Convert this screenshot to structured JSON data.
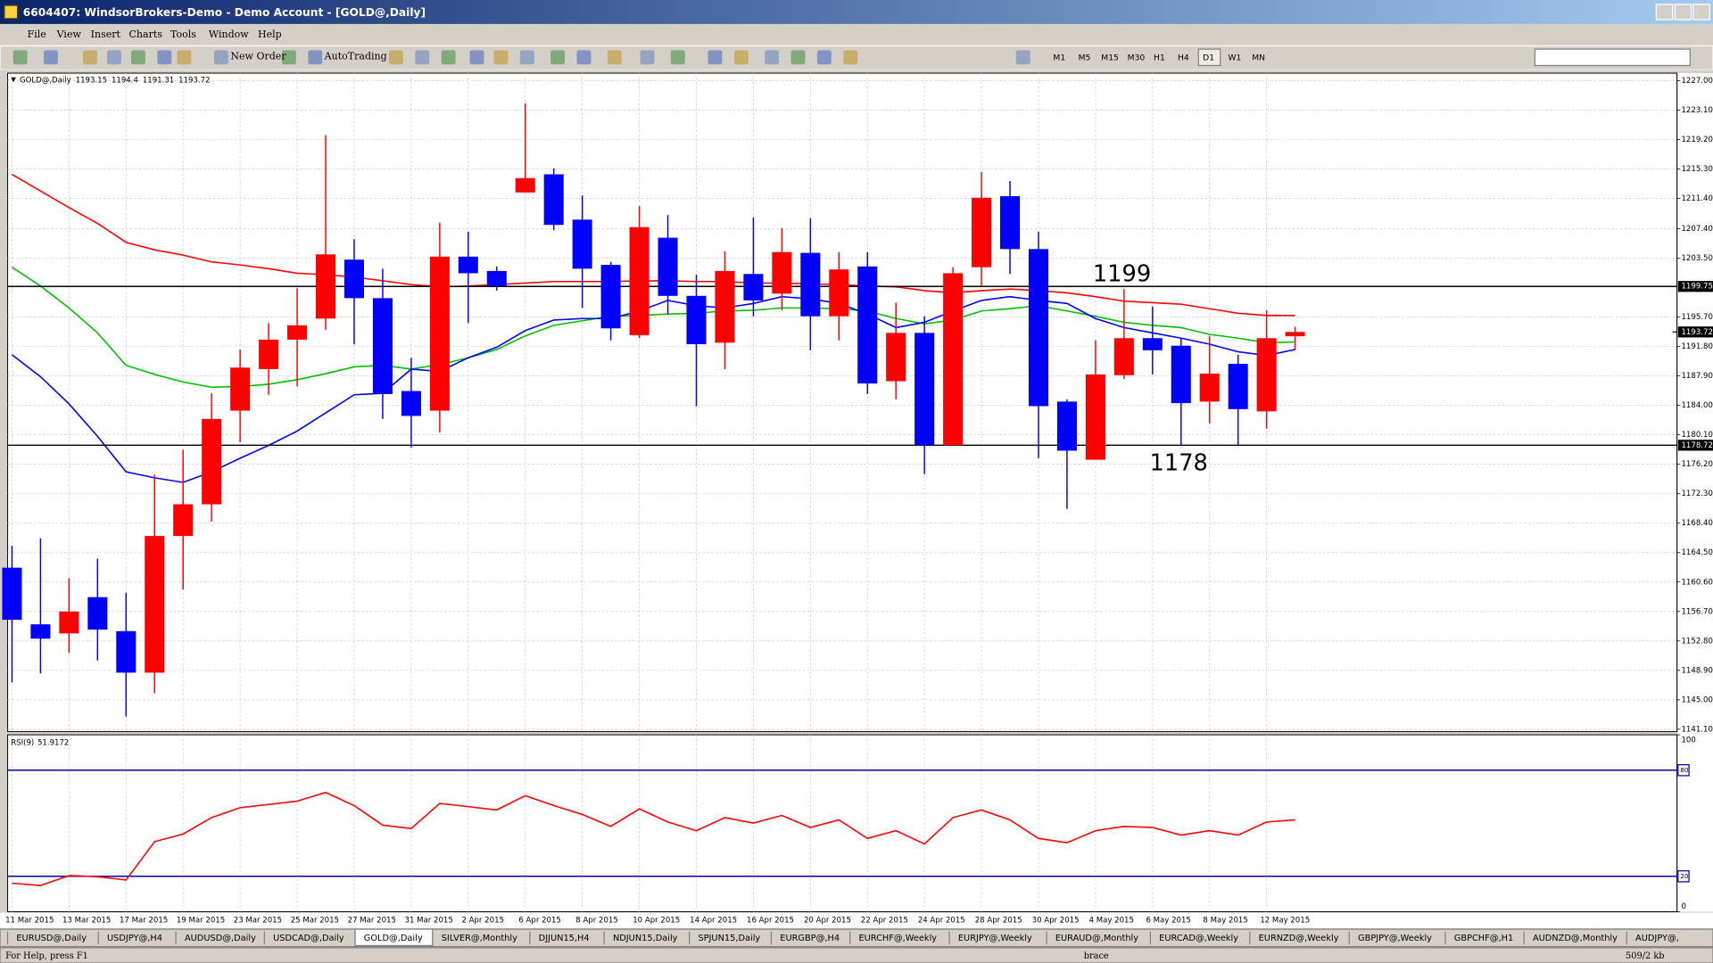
{
  "window": {
    "title": "6604407: WindsorBrokers-Demo - Demo Account - [GOLD@,Daily]"
  },
  "menu": [
    "File",
    "View",
    "Insert",
    "Charts",
    "Tools",
    "Window",
    "Help"
  ],
  "toolbar": {
    "new_order": "New Order",
    "autotrading": "AutoTrading",
    "timeframes": [
      "M1",
      "M5",
      "M15",
      "M30",
      "H1",
      "H4",
      "D1",
      "W1",
      "MN"
    ],
    "active_timeframe": "D1"
  },
  "chart_data": [
    {
      "type": "candlestick",
      "title": "GOLD@,Daily",
      "up_color": "#ff0000",
      "down_color": "#0000ff",
      "grid": true,
      "categories": [
        "11 Mar 2015",
        null,
        "13 Mar 2015",
        null,
        "17 Mar 2015",
        null,
        "19 Mar 2015",
        null,
        "23 Mar 2015",
        null,
        "25 Mar 2015",
        null,
        "27 Mar 2015",
        null,
        "31 Mar 2015",
        null,
        "2 Apr 2015",
        null,
        "6 Apr 2015",
        null,
        "8 Apr 2015",
        null,
        "10 Apr 2015",
        null,
        "14 Apr 2015",
        null,
        "16 Apr 2015",
        null,
        "20 Apr 2015",
        null,
        "22 Apr 2015",
        null,
        "24 Apr 2015",
        null,
        "28 Apr 2015",
        null,
        "30 Apr 2015",
        null,
        "4 May 2015",
        null,
        "6 May 2015",
        null,
        "8 May 2015",
        null,
        "12 May 2015",
        null
      ],
      "open": [
        1162.5,
        1155.0,
        1153.8,
        1158.6,
        1154.1,
        1148.6,
        1166.7,
        1170.9,
        1183.3,
        1188.8,
        1192.7,
        1195.5,
        1203.3,
        1198.2,
        1185.9,
        1183.3,
        1203.7,
        1201.8,
        1212.2,
        1214.6,
        1208.6,
        1202.6,
        1193.3,
        1206.2,
        1198.5,
        1192.3,
        1201.4,
        1198.8,
        1204.2,
        1195.8,
        1202.4,
        1187.2,
        1193.6,
        1178.7,
        1202.3,
        1211.7,
        1204.7,
        1184.5,
        1176.8,
        1188.0,
        1192.9,
        1191.9,
        1184.5,
        1189.5,
        1183.2,
        1193.15
      ],
      "high": [
        1165.4,
        1166.4,
        1161.1,
        1163.7,
        1159.2,
        1174.8,
        1178.1,
        1185.6,
        1191.4,
        1194.9,
        1199.5,
        1219.8,
        1206.0,
        1202.1,
        1190.3,
        1208.2,
        1207.0,
        1202.4,
        1224.0,
        1215.4,
        1211.8,
        1203.0,
        1210.4,
        1209.2,
        1201.3,
        1204.4,
        1208.9,
        1207.5,
        1208.8,
        1204.3,
        1204.3,
        1197.6,
        1195.8,
        1202.3,
        1214.9,
        1213.7,
        1207.0,
        1184.8,
        1192.6,
        1199.4,
        1197.1,
        1192.9,
        1193.2,
        1190.7,
        1196.6,
        1194.4
      ],
      "low": [
        1147.3,
        1148.5,
        1151.2,
        1150.2,
        1142.8,
        1145.9,
        1159.6,
        1168.6,
        1179.1,
        1185.4,
        1186.5,
        1194.0,
        1192.1,
        1182.2,
        1178.4,
        1180.4,
        1194.9,
        1199.2,
        1212.2,
        1207.2,
        1196.9,
        1192.6,
        1192.9,
        1196.1,
        1183.9,
        1188.8,
        1195.8,
        1196.6,
        1191.3,
        1192.6,
        1185.5,
        1184.8,
        1174.9,
        1178.7,
        1199.8,
        1201.4,
        1177.0,
        1170.3,
        1176.8,
        1187.5,
        1188.1,
        1178.7,
        1181.6,
        1178.7,
        1180.9,
        1191.31
      ],
      "close": [
        1155.6,
        1153.1,
        1156.7,
        1154.3,
        1148.6,
        1166.7,
        1170.9,
        1182.2,
        1189.0,
        1192.7,
        1194.6,
        1204.0,
        1198.2,
        1185.5,
        1182.6,
        1203.7,
        1201.5,
        1199.8,
        1214.1,
        1207.9,
        1202.1,
        1194.2,
        1207.6,
        1198.5,
        1192.1,
        1201.8,
        1197.9,
        1204.3,
        1195.8,
        1202.0,
        1186.9,
        1193.6,
        1178.7,
        1201.5,
        1211.5,
        1204.7,
        1183.9,
        1178.0,
        1188.1,
        1192.9,
        1191.3,
        1184.3,
        1188.2,
        1183.5,
        1192.9,
        1193.72
      ],
      "series": [
        {
          "color": "#ff0000",
          "values": [
            1214.6,
            1212.4,
            1210.2,
            1208.1,
            1205.6,
            1204.6,
            1203.9,
            1203.0,
            1202.6,
            1202.1,
            1201.5,
            1201.3,
            1201.0,
            1200.5,
            1200.0,
            1199.7,
            1199.8,
            1200.0,
            1200.2,
            1200.4,
            1200.4,
            1200.4,
            1200.5,
            1200.5,
            1200.4,
            1200.4,
            1200.2,
            1200.2,
            1200.1,
            1200.0,
            1199.8,
            1199.7,
            1199.2,
            1198.9,
            1199.2,
            1199.4,
            1199.2,
            1198.9,
            1198.4,
            1197.8,
            1197.6,
            1197.4,
            1196.8,
            1196.2,
            1195.9,
            1195.9
          ]
        },
        {
          "color": "#00c000",
          "values": [
            1202.3,
            1199.8,
            1196.9,
            1193.6,
            1189.3,
            1188.1,
            1187.1,
            1186.4,
            1186.5,
            1186.8,
            1187.4,
            1188.2,
            1189.1,
            1189.3,
            1188.8,
            1189.4,
            1190.3,
            1191.4,
            1193.2,
            1194.6,
            1195.2,
            1195.8,
            1195.9,
            1196.1,
            1196.2,
            1196.5,
            1196.6,
            1196.9,
            1196.9,
            1196.8,
            1196.5,
            1195.5,
            1194.8,
            1195.3,
            1196.5,
            1196.8,
            1197.2,
            1196.5,
            1195.8,
            1195.0,
            1194.6,
            1194.3,
            1193.4,
            1192.9,
            1192.3,
            1192.4
          ]
        },
        {
          "color": "#0000ff",
          "values": [
            1190.7,
            1187.8,
            1184.2,
            1179.9,
            1175.2,
            1174.4,
            1173.8,
            1175.2,
            1177.0,
            1178.7,
            1180.6,
            1183.0,
            1185.4,
            1185.6,
            1188.8,
            1188.5,
            1190.3,
            1191.7,
            1193.9,
            1195.3,
            1195.5,
            1195.5,
            1196.5,
            1197.9,
            1197.2,
            1196.9,
            1197.5,
            1198.4,
            1198.1,
            1197.5,
            1196.1,
            1194.3,
            1195.0,
            1196.5,
            1197.9,
            1198.4,
            1197.9,
            1197.5,
            1195.5,
            1194.3,
            1193.6,
            1192.9,
            1192.1,
            1191.1,
            1190.6,
            1191.4
          ]
        }
      ],
      "levels": [
        {
          "value": 1199.75,
          "annotation": "1199"
        },
        {
          "value": 1178.72,
          "annotation": "1178"
        }
      ],
      "ylim": [
        1140.8,
        1228.0
      ],
      "yticks": [
        {
          "value": 1227.0,
          "label": "1227.00"
        },
        {
          "value": 1223.1,
          "label": "1223.10"
        },
        {
          "value": 1219.2,
          "label": "1219.20"
        },
        {
          "value": 1215.3,
          "label": "1215.30"
        },
        {
          "value": 1211.4,
          "label": "1211.40"
        },
        {
          "value": 1207.4,
          "label": "1207.40"
        },
        {
          "value": 1203.5,
          "label": "1203.50"
        },
        {
          "value": 1195.7,
          "label": "1195.70"
        },
        {
          "value": 1191.8,
          "label": "1191.80"
        },
        {
          "value": 1187.9,
          "label": "1187.90"
        },
        {
          "value": 1184.0,
          "label": "1184.00"
        },
        {
          "value": 1180.1,
          "label": "1180.10"
        },
        {
          "value": 1176.2,
          "label": "1176.20"
        },
        {
          "value": 1172.3,
          "label": "1172.30"
        },
        {
          "value": 1168.4,
          "label": "1168.40"
        },
        {
          "value": 1164.5,
          "label": "1164.50"
        },
        {
          "value": 1160.6,
          "label": "1160.60"
        },
        {
          "value": 1156.7,
          "label": "1156.70"
        },
        {
          "value": 1152.8,
          "label": "1152.80"
        },
        {
          "value": 1148.9,
          "label": "1148.90"
        },
        {
          "value": 1145.0,
          "label": "1145.00"
        },
        {
          "value": 1141.1,
          "label": "1141.10"
        }
      ]
    },
    {
      "type": "line",
      "title": "RSI(9)",
      "color": "#ff0000",
      "values": [
        16.1,
        14.8,
        20.4,
        19.8,
        17.9,
        39.6,
        43.9,
        53.2,
        58.8,
        60.6,
        62.5,
        67.4,
        60.0,
        48.9,
        47.0,
        61.2,
        59.4,
        57.5,
        65.6,
        60.0,
        55.0,
        48.2,
        58.1,
        50.7,
        45.8,
        53.2,
        50.1,
        54.4,
        47.6,
        51.9,
        41.4,
        45.8,
        38.3,
        53.2,
        57.5,
        51.9,
        41.4,
        39.0,
        45.8,
        48.2,
        47.6,
        43.3,
        45.8,
        43.3,
        50.7,
        51.9172
      ],
      "levels": [
        80,
        20
      ],
      "level_color": "#0000aa",
      "ylim": [
        0,
        100
      ],
      "yticks": [
        100,
        0
      ]
    }
  ],
  "tabs": [
    "EURUSD@,Daily",
    "USDJPY@,H4",
    "AUDUSD@,Daily",
    "USDCAD@,Daily",
    "GOLD@,Daily",
    "SILVER@,Monthly",
    "DJJUN15,H4",
    "NDJUN15,Daily",
    "SPJUN15,Daily",
    "EURGBP@,H4",
    "EURCHF@,Weekly",
    "EURJPY@,Weekly",
    "EURAUD@,Monthly",
    "EURCAD@,Weekly",
    "EURNZD@,Weekly",
    "GBPJPY@,Weekly",
    "GBPCHF@,H1",
    "AUDNZD@,Monthly",
    "AUDJPY@,"
  ],
  "active_tab": "GOLD@,Daily",
  "status": {
    "help": "For Help, press F1",
    "profile": "brace",
    "traffic": "509/2 kb"
  }
}
